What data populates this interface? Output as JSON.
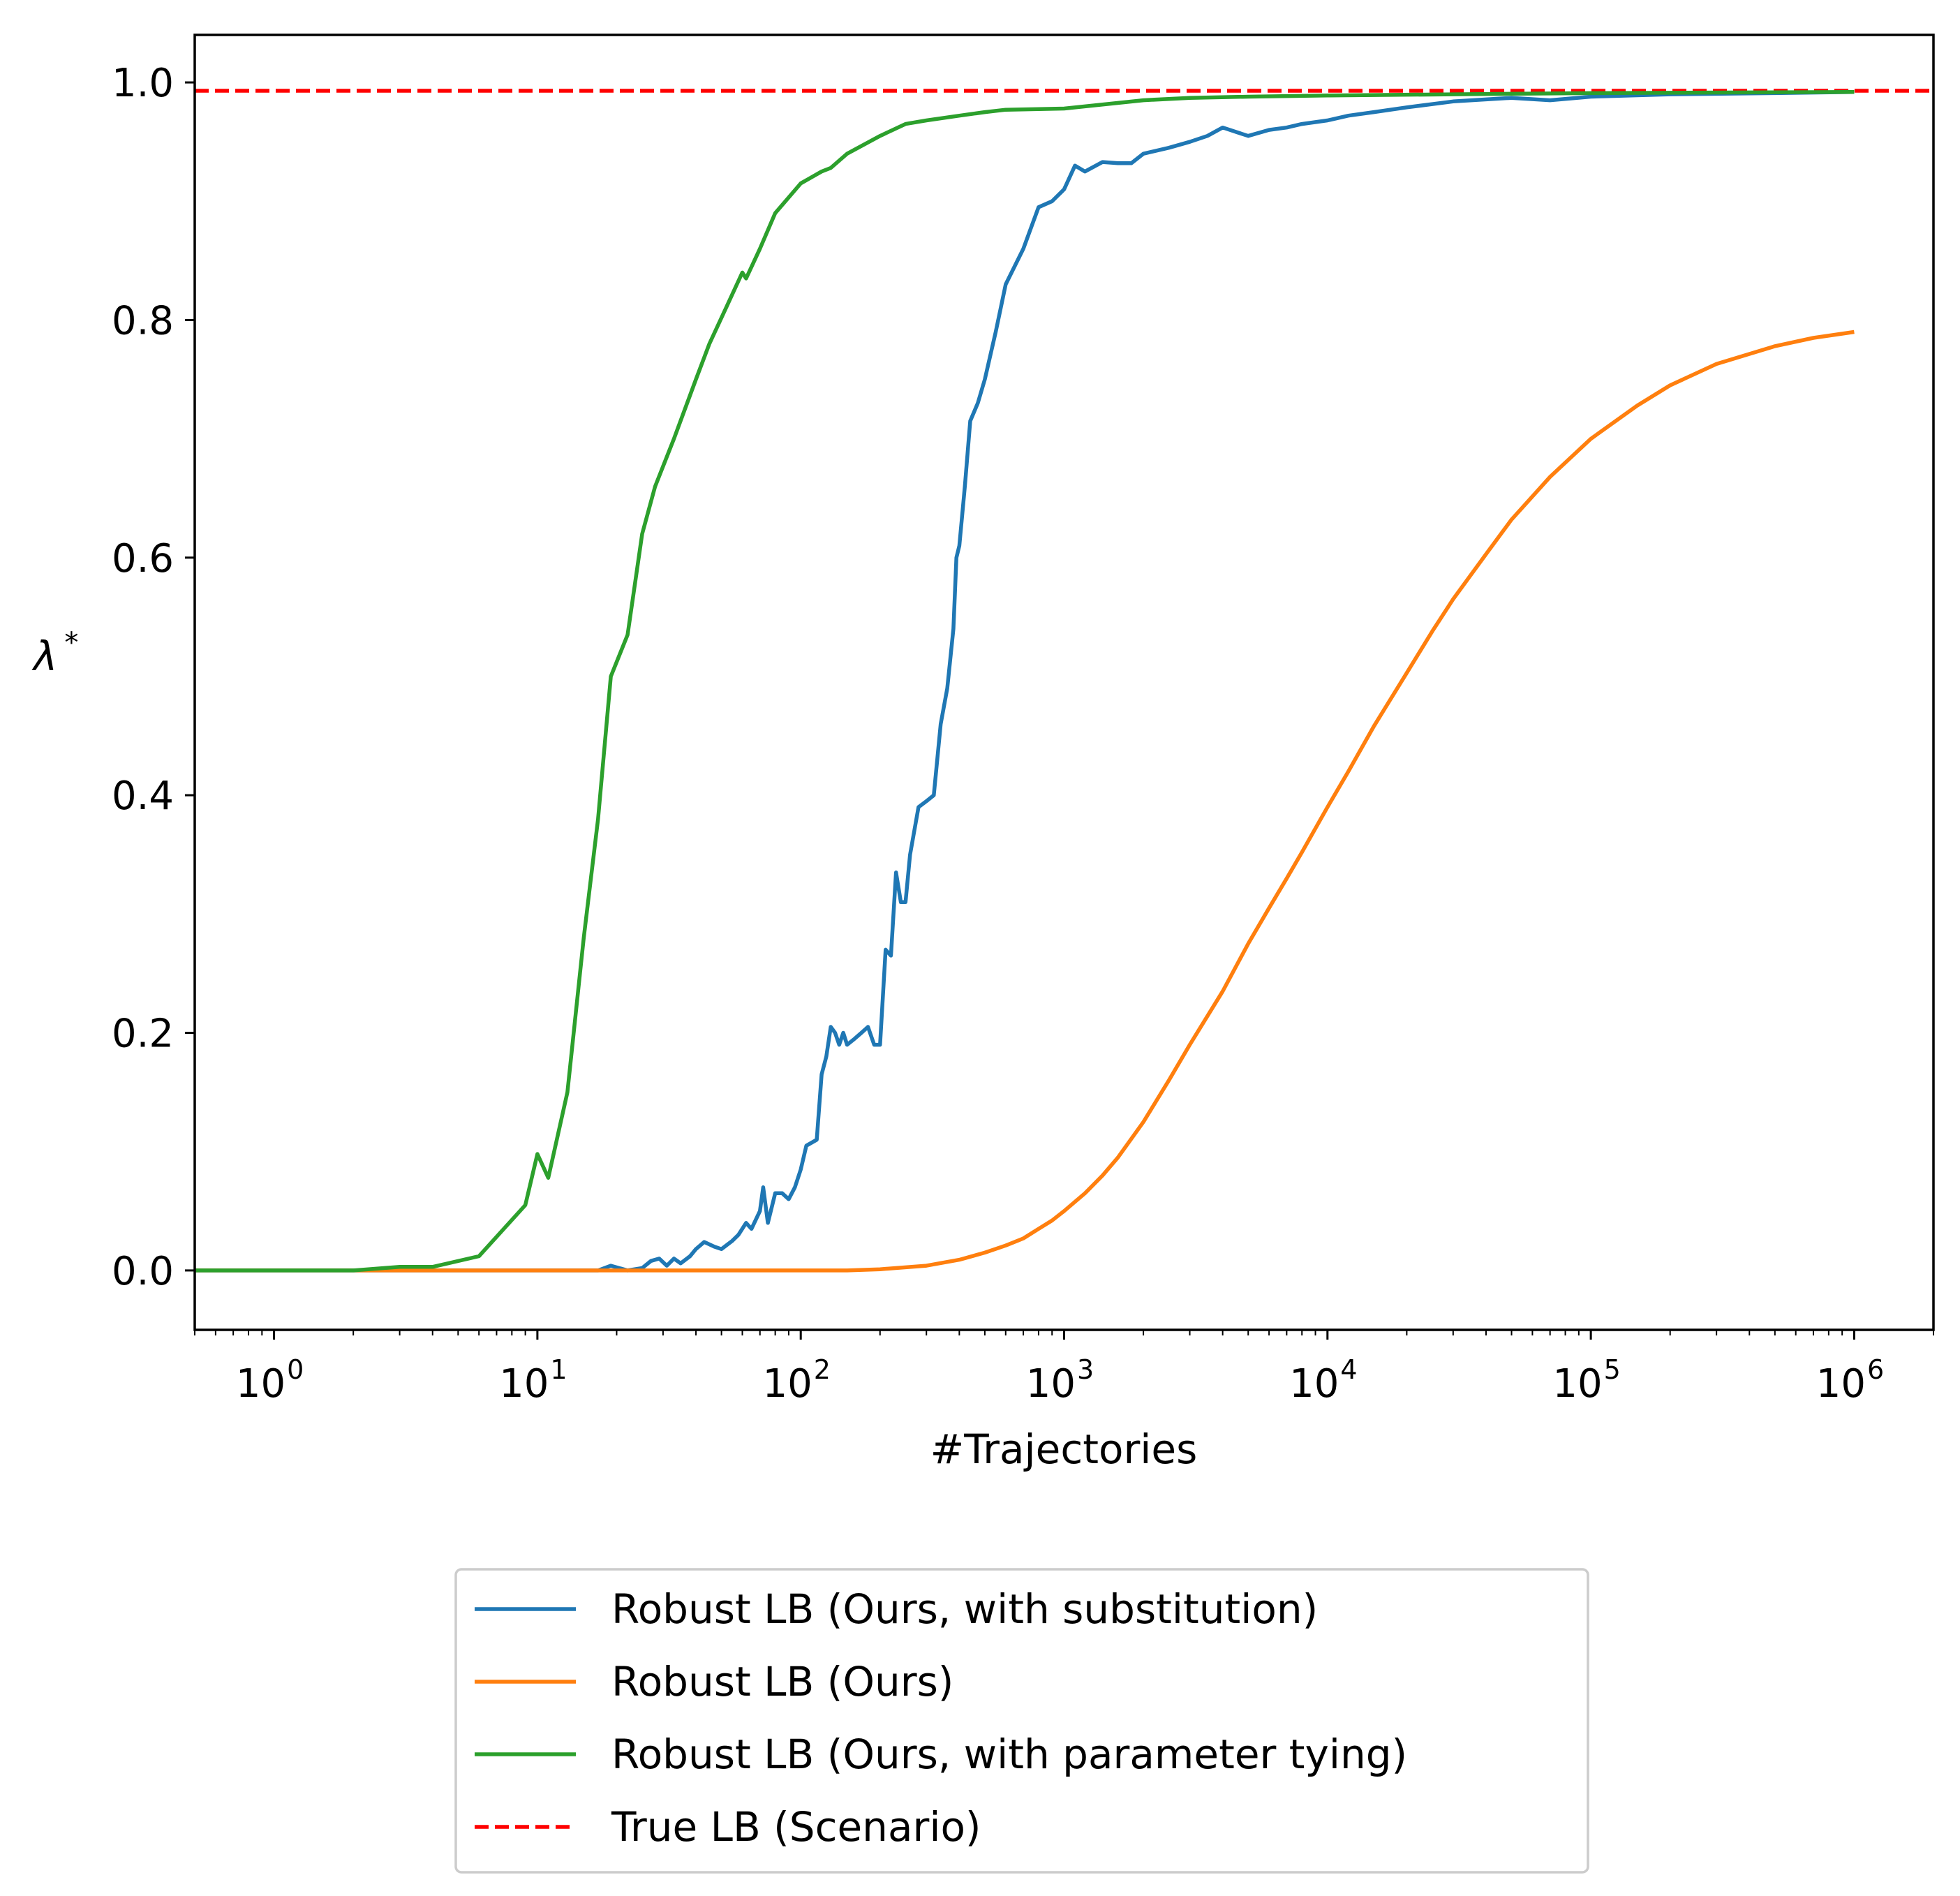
{
  "chart_data": {
    "type": "line",
    "xlabel": "#Trajectories",
    "ylabel": "λ",
    "ylabel_superscript": "*",
    "xscale": "log",
    "xlim": [
      0.5,
      2000000
    ],
    "ylim": [
      -0.05,
      1.04
    ],
    "grid": false,
    "legend_position": "below",
    "x_ticks": [
      {
        "value": 1,
        "base": "10",
        "exp": "0"
      },
      {
        "value": 10,
        "base": "10",
        "exp": "1"
      },
      {
        "value": 100,
        "base": "10",
        "exp": "2"
      },
      {
        "value": 1000,
        "base": "10",
        "exp": "3"
      },
      {
        "value": 10000,
        "base": "10",
        "exp": "4"
      },
      {
        "value": 100000,
        "base": "10",
        "exp": "5"
      },
      {
        "value": 1000000,
        "base": "10",
        "exp": "6"
      }
    ],
    "y_ticks": [
      {
        "value": 0.0,
        "label": "0.0"
      },
      {
        "value": 0.2,
        "label": "0.2"
      },
      {
        "value": 0.4,
        "label": "0.4"
      },
      {
        "value": 0.6,
        "label": "0.6"
      },
      {
        "value": 0.8,
        "label": "0.8"
      },
      {
        "value": 1.0,
        "label": "1.0"
      }
    ],
    "series": [
      {
        "name": "Robust LB (Ours, with substitution)",
        "color": "#1f77b4",
        "style": "solid",
        "points": [
          [
            0.5,
            0
          ],
          [
            10,
            0
          ],
          [
            17,
            0
          ],
          [
            19,
            0.004
          ],
          [
            22,
            0
          ],
          [
            25,
            0.002
          ],
          [
            27,
            0.008
          ],
          [
            29,
            0.01
          ],
          [
            31,
            0.004
          ],
          [
            33,
            0.01
          ],
          [
            35,
            0.006
          ],
          [
            38,
            0.012
          ],
          [
            40,
            0.018
          ],
          [
            43,
            0.024
          ],
          [
            47,
            0.02
          ],
          [
            50,
            0.018
          ],
          [
            55,
            0.025
          ],
          [
            58,
            0.03
          ],
          [
            62,
            0.04
          ],
          [
            65,
            0.035
          ],
          [
            70,
            0.05
          ],
          [
            72,
            0.07
          ],
          [
            75,
            0.04
          ],
          [
            80,
            0.065
          ],
          [
            85,
            0.065
          ],
          [
            90,
            0.06
          ],
          [
            95,
            0.07
          ],
          [
            100,
            0.085
          ],
          [
            105,
            0.105
          ],
          [
            115,
            0.11
          ],
          [
            120,
            0.165
          ],
          [
            125,
            0.18
          ],
          [
            130,
            0.205
          ],
          [
            135,
            0.2
          ],
          [
            140,
            0.19
          ],
          [
            145,
            0.2
          ],
          [
            150,
            0.19
          ],
          [
            160,
            0.195
          ],
          [
            170,
            0.2
          ],
          [
            180,
            0.205
          ],
          [
            190,
            0.19
          ],
          [
            200,
            0.19
          ],
          [
            210,
            0.27
          ],
          [
            220,
            0.265
          ],
          [
            230,
            0.335
          ],
          [
            240,
            0.31
          ],
          [
            250,
            0.31
          ],
          [
            260,
            0.35
          ],
          [
            280,
            0.39
          ],
          [
            300,
            0.395
          ],
          [
            320,
            0.4
          ],
          [
            340,
            0.46
          ],
          [
            360,
            0.49
          ],
          [
            380,
            0.54
          ],
          [
            390,
            0.6
          ],
          [
            400,
            0.61
          ],
          [
            420,
            0.66
          ],
          [
            440,
            0.715
          ],
          [
            470,
            0.73
          ],
          [
            500,
            0.75
          ],
          [
            550,
            0.79
          ],
          [
            600,
            0.83
          ],
          [
            700,
            0.86
          ],
          [
            800,
            0.895
          ],
          [
            900,
            0.9
          ],
          [
            1000,
            0.91
          ],
          [
            1100,
            0.93
          ],
          [
            1200,
            0.925
          ],
          [
            1400,
            0.933
          ],
          [
            1600,
            0.932
          ],
          [
            1800,
            0.932
          ],
          [
            2000,
            0.94
          ],
          [
            2500,
            0.945
          ],
          [
            3000,
            0.95
          ],
          [
            3500,
            0.955
          ],
          [
            4000,
            0.962
          ],
          [
            5000,
            0.955
          ],
          [
            6000,
            0.96
          ],
          [
            7000,
            0.962
          ],
          [
            8000,
            0.965
          ],
          [
            10000,
            0.968
          ],
          [
            12000,
            0.972
          ],
          [
            15000,
            0.975
          ],
          [
            20000,
            0.979
          ],
          [
            30000,
            0.984
          ],
          [
            50000,
            0.987
          ],
          [
            70000,
            0.985
          ],
          [
            100000,
            0.988
          ],
          [
            200000,
            0.99
          ],
          [
            500000,
            0.991
          ],
          [
            1000000,
            0.992
          ]
        ]
      },
      {
        "name": "Robust LB (Ours)",
        "color": "#ff7f0e",
        "style": "solid",
        "points": [
          [
            0.5,
            0
          ],
          [
            150,
            0
          ],
          [
            200,
            0.001
          ],
          [
            300,
            0.004
          ],
          [
            400,
            0.009
          ],
          [
            500,
            0.015
          ],
          [
            600,
            0.021
          ],
          [
            700,
            0.027
          ],
          [
            800,
            0.035
          ],
          [
            900,
            0.042
          ],
          [
            1000,
            0.05
          ],
          [
            1200,
            0.065
          ],
          [
            1400,
            0.08
          ],
          [
            1600,
            0.095
          ],
          [
            2000,
            0.125
          ],
          [
            2500,
            0.16
          ],
          [
            3000,
            0.19
          ],
          [
            4000,
            0.235
          ],
          [
            5000,
            0.275
          ],
          [
            6000,
            0.305
          ],
          [
            7000,
            0.33
          ],
          [
            8000,
            0.352
          ],
          [
            10000,
            0.39
          ],
          [
            12000,
            0.42
          ],
          [
            15000,
            0.458
          ],
          [
            20000,
            0.503
          ],
          [
            25000,
            0.538
          ],
          [
            30000,
            0.565
          ],
          [
            40000,
            0.603
          ],
          [
            50000,
            0.632
          ],
          [
            70000,
            0.668
          ],
          [
            100000,
            0.7
          ],
          [
            150000,
            0.728
          ],
          [
            200000,
            0.745
          ],
          [
            300000,
            0.763
          ],
          [
            500000,
            0.778
          ],
          [
            700000,
            0.785
          ],
          [
            1000000,
            0.79
          ]
        ]
      },
      {
        "name": "Robust LB (Ours, with parameter tying)",
        "color": "#2ca02c",
        "style": "solid",
        "points": [
          [
            0.5,
            0
          ],
          [
            1,
            0
          ],
          [
            2,
            0
          ],
          [
            3,
            0.003
          ],
          [
            4,
            0.003
          ],
          [
            6,
            0.012
          ],
          [
            9,
            0.055
          ],
          [
            10,
            0.098
          ],
          [
            11,
            0.078
          ],
          [
            13,
            0.15
          ],
          [
            15,
            0.28
          ],
          [
            17,
            0.38
          ],
          [
            19,
            0.5
          ],
          [
            22,
            0.535
          ],
          [
            25,
            0.62
          ],
          [
            28,
            0.66
          ],
          [
            33,
            0.7
          ],
          [
            40,
            0.75
          ],
          [
            45,
            0.78
          ],
          [
            52,
            0.81
          ],
          [
            60,
            0.84
          ],
          [
            62,
            0.835
          ],
          [
            70,
            0.86
          ],
          [
            80,
            0.89
          ],
          [
            100,
            0.915
          ],
          [
            120,
            0.925
          ],
          [
            130,
            0.928
          ],
          [
            150,
            0.94
          ],
          [
            200,
            0.955
          ],
          [
            250,
            0.965
          ],
          [
            300,
            0.968
          ],
          [
            400,
            0.972
          ],
          [
            500,
            0.975
          ],
          [
            600,
            0.977
          ],
          [
            1000,
            0.978
          ],
          [
            2000,
            0.985
          ],
          [
            3000,
            0.987
          ],
          [
            5000,
            0.988
          ],
          [
            10000,
            0.989
          ],
          [
            30000,
            0.99
          ],
          [
            100000,
            0.991
          ],
          [
            1000000,
            0.992
          ]
        ]
      },
      {
        "name": "True LB (Scenario)",
        "color": "#ff0000",
        "style": "dashed",
        "points": [
          [
            0.5,
            0.993
          ],
          [
            2000000,
            0.993
          ]
        ]
      }
    ]
  }
}
